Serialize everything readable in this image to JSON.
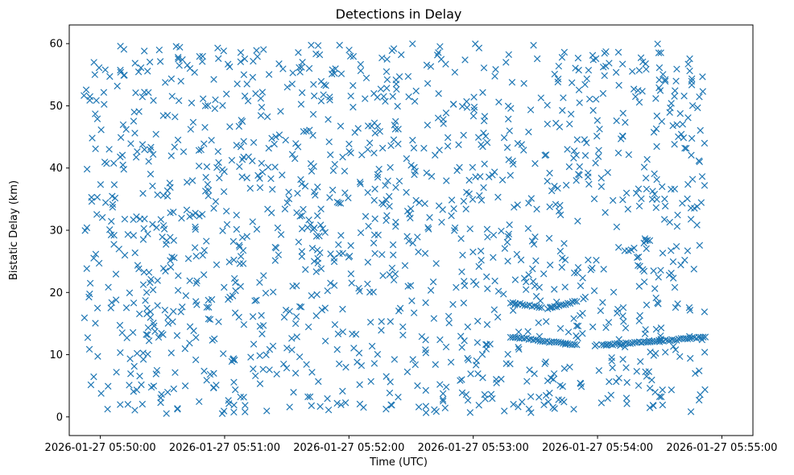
{
  "chart_data": {
    "type": "scatter",
    "title": "Detections in Delay",
    "xlabel": "Time (UTC)",
    "ylabel": "Bistatic Delay (km)",
    "x_axis": {
      "type": "time",
      "min": "2026-01-27 05:49:45",
      "max": "2026-01-27 05:55:15",
      "ticks": [
        "2026-01-27 05:50:00",
        "2026-01-27 05:51:00",
        "2026-01-27 05:52:00",
        "2026-01-27 05:53:00",
        "2026-01-27 05:54:00",
        "2026-01-27 05:55:00"
      ]
    },
    "y_axis": {
      "min": -3,
      "max": 63,
      "ticks": [
        0,
        10,
        20,
        30,
        40,
        50,
        60
      ]
    },
    "grid": false,
    "marker": "x",
    "marker_color": "#1f77b4",
    "series": [
      {
        "data_range": {
          "start": "2026-01-27 05:49:52",
          "end": "2026-01-27 05:54:52",
          "delay_min_km": 0.5,
          "delay_max_km": 60
        },
        "clutter_count": 1400,
        "tracks": [
          {
            "start": "2026-01-27 05:53:18",
            "end": "2026-01-27 05:53:33",
            "delay_start_km": 18.4,
            "delay_end_km": 17.6,
            "points": 14
          },
          {
            "start": "2026-01-27 05:53:36",
            "end": "2026-01-27 05:53:50",
            "delay_start_km": 17.4,
            "delay_end_km": 18.6,
            "points": 14
          },
          {
            "start": "2026-01-27 05:53:18",
            "end": "2026-01-27 05:53:50",
            "delay_start_km": 12.9,
            "delay_end_km": 11.5,
            "points": 30
          },
          {
            "start": "2026-01-27 05:54:02",
            "end": "2026-01-27 05:54:52",
            "delay_start_km": 11.5,
            "delay_end_km": 12.8,
            "points": 48
          }
        ]
      }
    ]
  }
}
